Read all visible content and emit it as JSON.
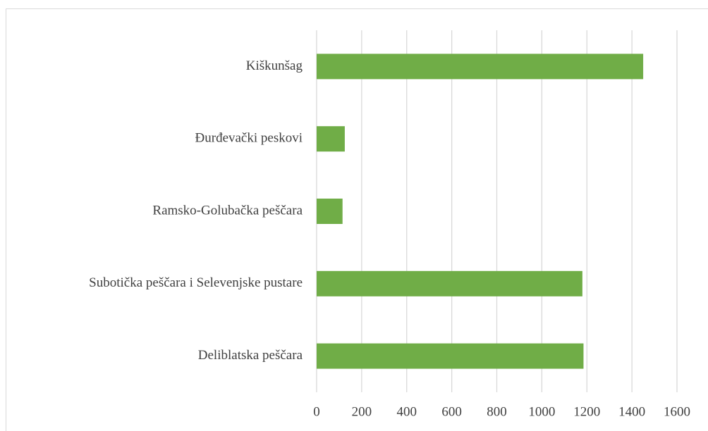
{
  "chart_data": {
    "type": "bar",
    "orientation": "horizontal",
    "categories": [
      "Kiškunšag",
      "Đurđevački peskovi",
      "Ramsko-Golubačka peščara",
      "Subotička peščara i Selevenjske pustare",
      "Deliblatska peščara"
    ],
    "values": [
      1450,
      125,
      115,
      1180,
      1185
    ],
    "color": "#70ad47",
    "xlim": [
      0,
      1600
    ],
    "xticks": [
      0,
      200,
      400,
      600,
      800,
      1000,
      1200,
      1400,
      1600
    ],
    "grid": true
  }
}
